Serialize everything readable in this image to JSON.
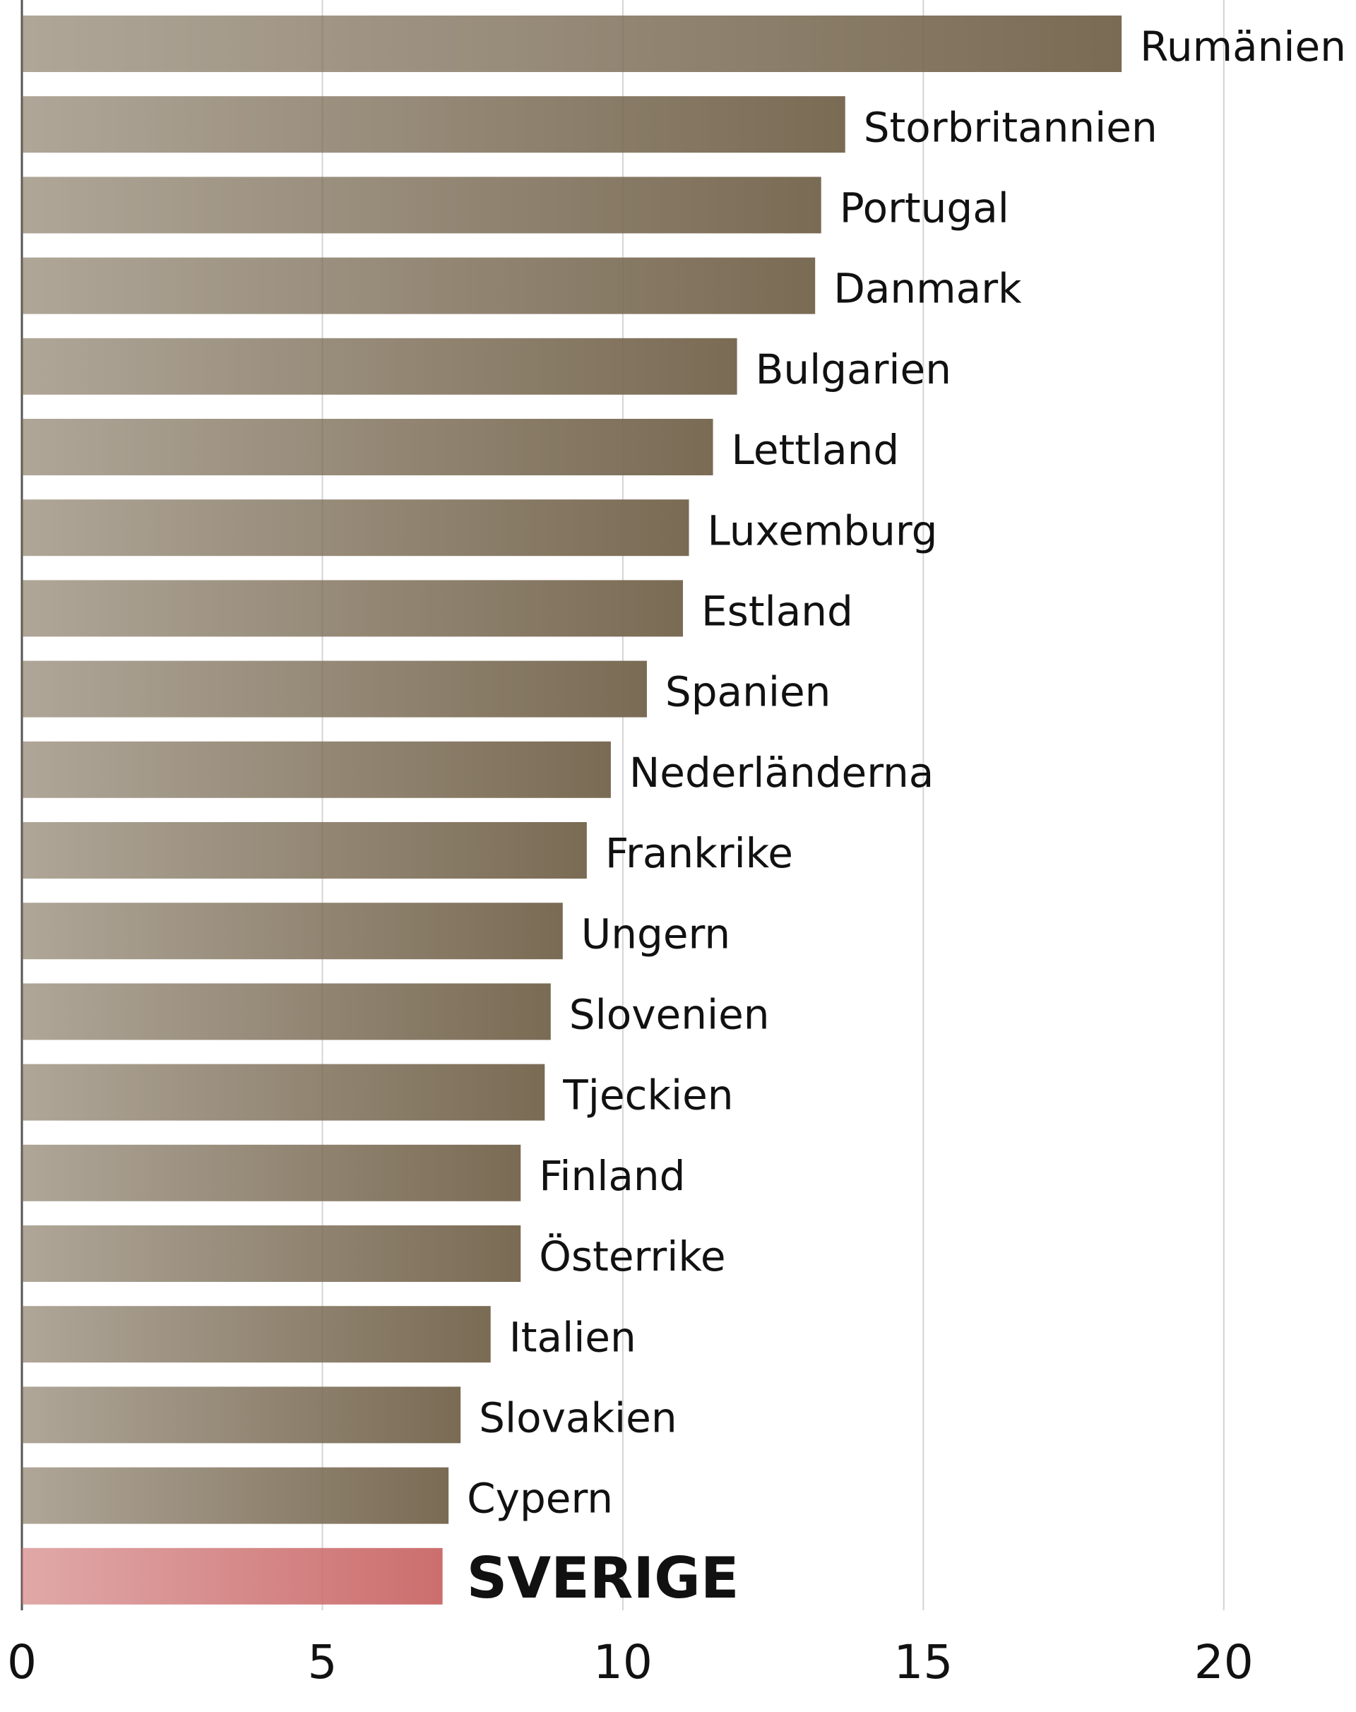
{
  "chart_data": {
    "type": "barh",
    "categories": [
      "Rumänien",
      "Storbritannien",
      "Portugal",
      "Danmark",
      "Bulgarien",
      "Lettland",
      "Luxemburg",
      "Estland",
      "Spanien",
      "Nederländerna",
      "Frankrike",
      "Ungern",
      "Slovenien",
      "Tjeckien",
      "Finland",
      "Österrike",
      "Italien",
      "Slovakien",
      "Cypern",
      "SVERIGE"
    ],
    "values": [
      18.3,
      13.7,
      13.3,
      13.2,
      11.9,
      11.5,
      11.1,
      11.0,
      10.4,
      9.8,
      9.4,
      9.0,
      8.8,
      8.7,
      8.3,
      8.3,
      7.8,
      7.3,
      7.1,
      7.0
    ],
    "colors": [
      "#7a6b54",
      "#7a6b54",
      "#7a6b54",
      "#7a6b54",
      "#7a6b54",
      "#7a6b54",
      "#7a6b54",
      "#7a6b54",
      "#7a6b54",
      "#7a6b54",
      "#7a6b54",
      "#7a6b54",
      "#7a6b54",
      "#7a6b54",
      "#7a6b54",
      "#7a6b54",
      "#7a6b54",
      "#7a6b54",
      "#7a6b54",
      "#cc6e6e"
    ],
    "xlim": [
      0,
      22.2
    ],
    "xticks": [
      0,
      5,
      10,
      15,
      20
    ],
    "grid": true
  }
}
